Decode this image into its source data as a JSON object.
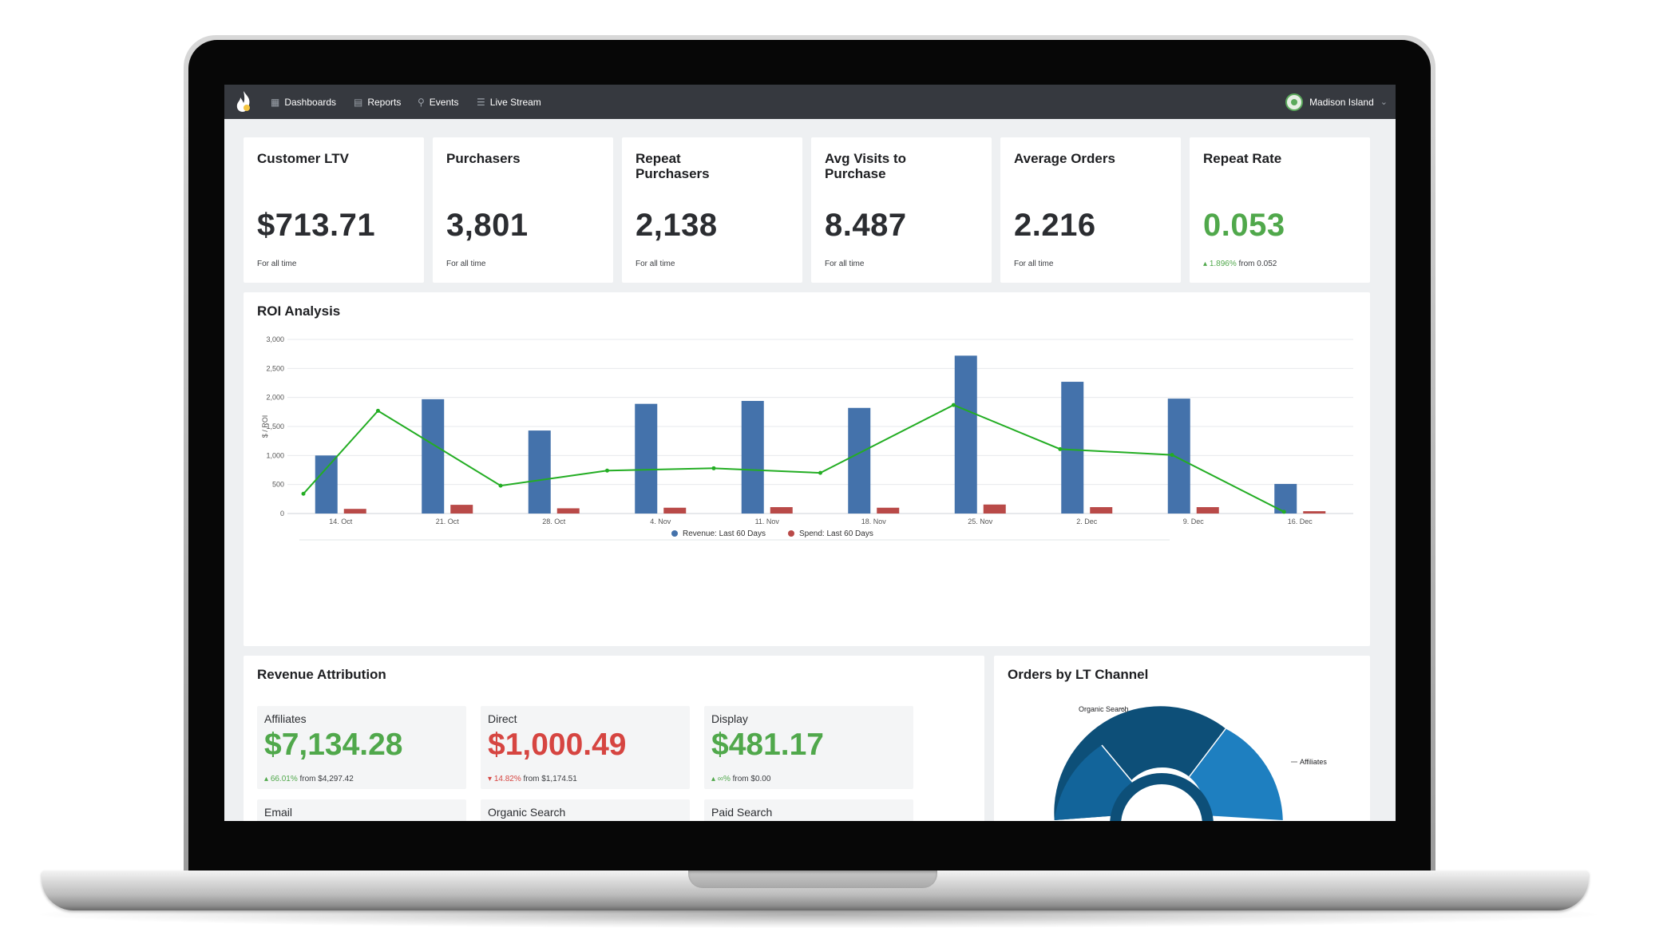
{
  "nav": {
    "items": [
      {
        "label": "Dashboards",
        "icon": "grid-icon"
      },
      {
        "label": "Reports",
        "icon": "report-icon"
      },
      {
        "label": "Events",
        "icon": "pin-icon"
      },
      {
        "label": "Live Stream",
        "icon": "list-icon"
      }
    ],
    "account": "Madison Island"
  },
  "kpis": [
    {
      "title": "Customer LTV",
      "value": "$713.71",
      "sub": "For all time"
    },
    {
      "title": "Purchasers",
      "value": "3,801",
      "sub": "For all time"
    },
    {
      "title": "Repeat Purchasers",
      "value": "2,138",
      "sub": "For all time"
    },
    {
      "title": "Avg Visits to Purchase",
      "value": "8.487",
      "sub": "For all time"
    },
    {
      "title": "Average Orders",
      "value": "2.216",
      "sub": "For all time"
    },
    {
      "title": "Repeat Rate",
      "value": "0.053",
      "change": "1.896%",
      "sub": "from 0.052"
    }
  ],
  "roi": {
    "title": "ROI Analysis"
  },
  "chart_data": [
    {
      "type": "bar",
      "title": "ROI Analysis",
      "ylabel": "$ / ROI",
      "ylim": [
        0,
        3000
      ],
      "yticks": [
        "0",
        "500",
        "1,000",
        "1,500",
        "2,000",
        "2,500",
        "3,000"
      ],
      "categories": [
        "14. Oct",
        "21. Oct",
        "28. Oct",
        "4. Nov",
        "11. Nov",
        "18. Nov",
        "25. Nov",
        "2. Dec",
        "9. Dec",
        "16. Dec"
      ],
      "series": [
        {
          "name": "Revenue: Last 60 Days",
          "type": "bar",
          "color": "#4472ab",
          "values": [
            1000,
            1970,
            1430,
            1890,
            1940,
            1820,
            2720,
            2270,
            1980,
            510
          ]
        },
        {
          "name": "Spend: Last 60 Days",
          "type": "bar",
          "color": "#b94a48",
          "values": [
            80,
            150,
            90,
            100,
            110,
            100,
            155,
            110,
            110,
            40
          ]
        },
        {
          "type": "line",
          "color": "#23ad23",
          "x": [
            -0.35,
            0.35,
            1.5,
            2.5,
            3.5,
            4.5,
            5.75,
            6.75,
            7.8,
            8.85
          ],
          "values": [
            340,
            1770,
            480,
            740,
            780,
            700,
            1870,
            1110,
            1010,
            30
          ]
        }
      ],
      "legend": "bottom-center"
    },
    {
      "type": "pie",
      "title": "Orders by LT Channel",
      "labels": [
        "Organic Search",
        "Affiliates"
      ],
      "colors": [
        "#0d4f78",
        "#1e7fc0",
        "#12649a"
      ]
    }
  ],
  "attribution": {
    "title": "Revenue Attribution",
    "tiles": [
      {
        "label": "Affiliates",
        "value": "$7,134.28",
        "trend": "up",
        "change": "66.01%",
        "sub": "from $4,297.42"
      },
      {
        "label": "Direct",
        "value": "$1,000.49",
        "trend": "down",
        "change": "14.82%",
        "sub": "from $1,174.51"
      },
      {
        "label": "Display",
        "value": "$481.17",
        "trend": "up",
        "change": "∞%",
        "sub": "from $0.00"
      }
    ],
    "next_row": [
      "Email",
      "Organic Search",
      "Paid Search"
    ]
  },
  "orders_channel": {
    "title": "Orders by LT Channel"
  }
}
